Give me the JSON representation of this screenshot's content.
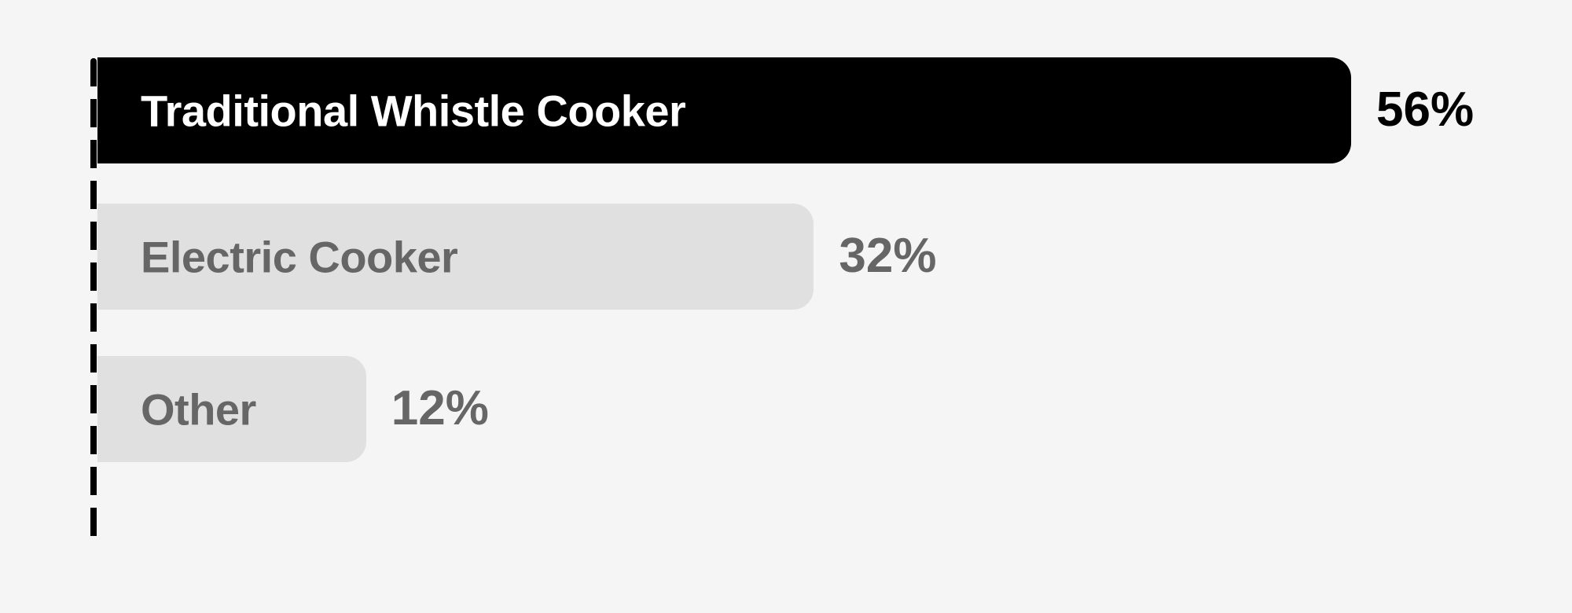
{
  "chart_data": {
    "type": "bar",
    "orientation": "horizontal",
    "categories": [
      "Traditional Whistle Cooker",
      "Electric Cooker",
      "Other"
    ],
    "values": [
      56,
      32,
      12
    ],
    "value_labels": [
      "56%",
      "32%",
      "12%"
    ],
    "title": "",
    "xlabel": "",
    "ylabel": "",
    "grid": false,
    "colors": {
      "highlight_bar": "#000000",
      "highlight_text": "#ffffff",
      "highlight_value": "#000000",
      "bar": "#e0e0e0",
      "text": "#666666",
      "background": "#f5f5f5",
      "baseline": "#000000"
    }
  }
}
